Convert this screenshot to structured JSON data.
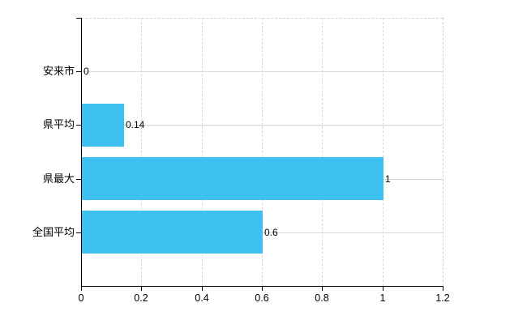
{
  "chart_data": {
    "type": "bar",
    "orientation": "horizontal",
    "title": "",
    "xlabel": "",
    "ylabel": "",
    "categories": [
      "安来市",
      "県平均",
      "県最大",
      "全国平均"
    ],
    "values": [
      0,
      0.14,
      1,
      0.6
    ],
    "value_labels": [
      "0",
      "0.14",
      "1",
      "0.6"
    ],
    "xlim": [
      0,
      1.2
    ],
    "xticks": [
      0,
      0.2,
      0.4,
      0.6,
      0.8,
      1,
      1.2
    ],
    "xtick_labels": [
      "0",
      "0.2",
      "0.4",
      "0.6",
      "0.8",
      "1",
      "1.2"
    ],
    "legend": null,
    "grid": {
      "vertical_style": "dashed",
      "horizontal_style": "solid",
      "color": "#D9D9D9"
    },
    "colors": {
      "bar": "#3EC1F0",
      "axis": "#000000",
      "text": "#000000",
      "background": "#FFFFFF"
    }
  }
}
